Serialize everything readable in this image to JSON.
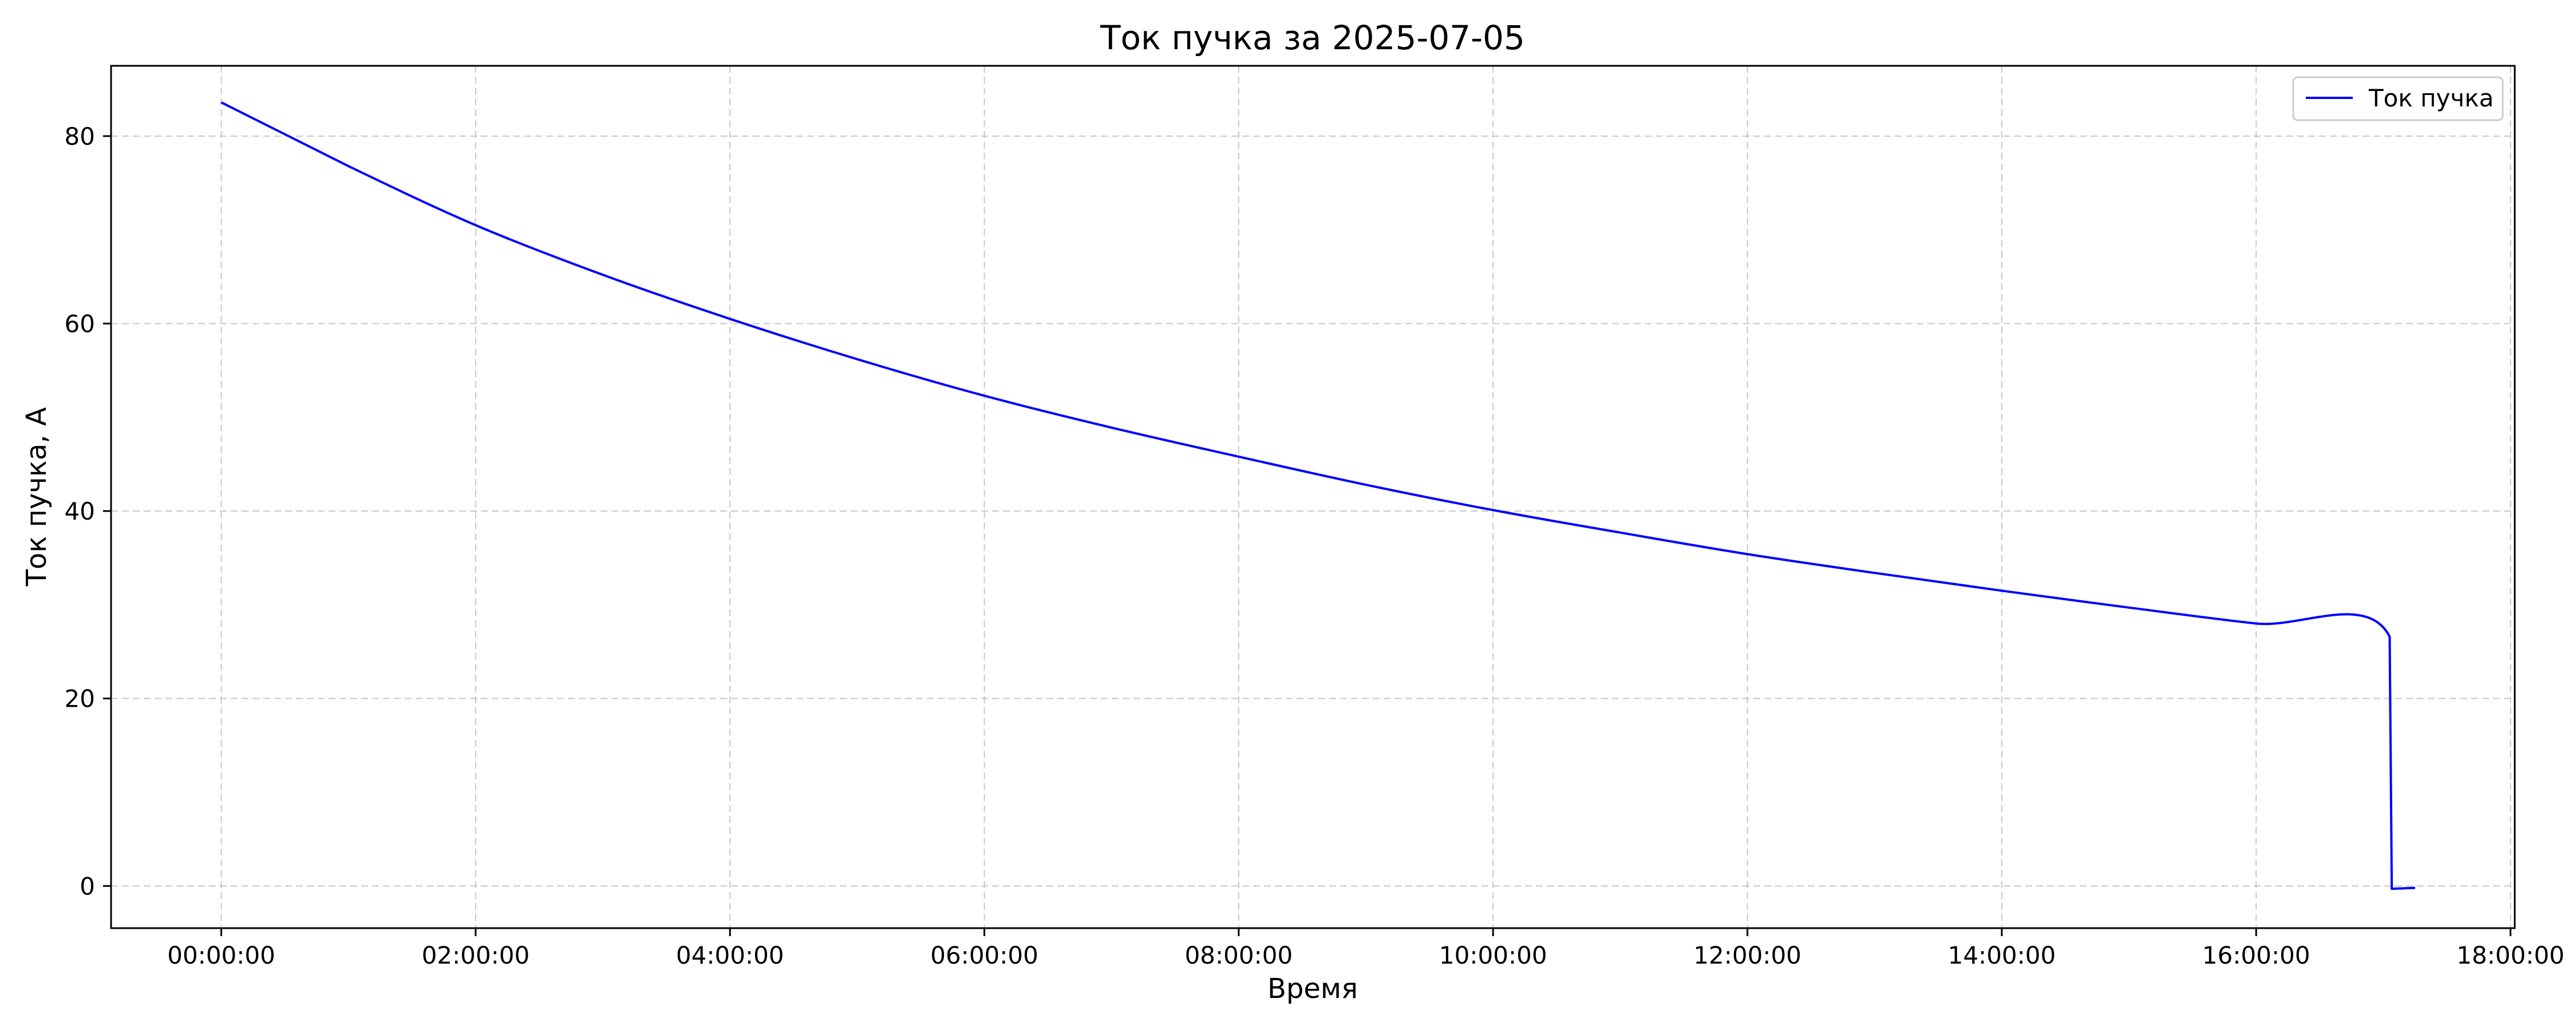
{
  "chart_data": {
    "type": "line",
    "title": "Ток пучка за 2025-07-05",
    "xlabel": "Время",
    "ylabel": "Ток пучка, А",
    "x_unit": "time of day",
    "xlim": [
      "-00:52:00",
      "18:02:00"
    ],
    "ylim": [
      -4.5,
      87.5
    ],
    "x_ticks": [
      "00:00:00",
      "02:00:00",
      "04:00:00",
      "06:00:00",
      "08:00:00",
      "10:00:00",
      "12:00:00",
      "14:00:00",
      "16:00:00",
      "18:00:00"
    ],
    "y_ticks": [
      0,
      20,
      40,
      60,
      80
    ],
    "grid": true,
    "grid_style": "dashed",
    "legend_position": "top-right",
    "series": [
      {
        "name": "Ток пучка",
        "color": "#0000ff",
        "points": [
          {
            "x": "00:00:00",
            "y": 83.6
          },
          {
            "x": "01:00:00",
            "y": 76.8
          },
          {
            "x": "02:00:00",
            "y": 70.5
          },
          {
            "x": "03:00:00",
            "y": 65.2
          },
          {
            "x": "04:00:00",
            "y": 60.5
          },
          {
            "x": "05:00:00",
            "y": 56.2
          },
          {
            "x": "06:00:00",
            "y": 52.3
          },
          {
            "x": "07:00:00",
            "y": 48.9
          },
          {
            "x": "08:00:00",
            "y": 45.8
          },
          {
            "x": "09:00:00",
            "y": 42.8
          },
          {
            "x": "10:00:00",
            "y": 40.1
          },
          {
            "x": "11:00:00",
            "y": 37.7
          },
          {
            "x": "12:00:00",
            "y": 35.4
          },
          {
            "x": "13:00:00",
            "y": 33.4
          },
          {
            "x": "14:00:00",
            "y": 31.5
          },
          {
            "x": "15:00:00",
            "y": 29.7
          },
          {
            "x": "16:00:00",
            "y": 28.0
          },
          {
            "x": "17:03:00",
            "y": 26.6
          },
          {
            "x": "17:04:00",
            "y": -0.3
          },
          {
            "x": "17:15:00",
            "y": -0.2
          }
        ]
      }
    ]
  }
}
